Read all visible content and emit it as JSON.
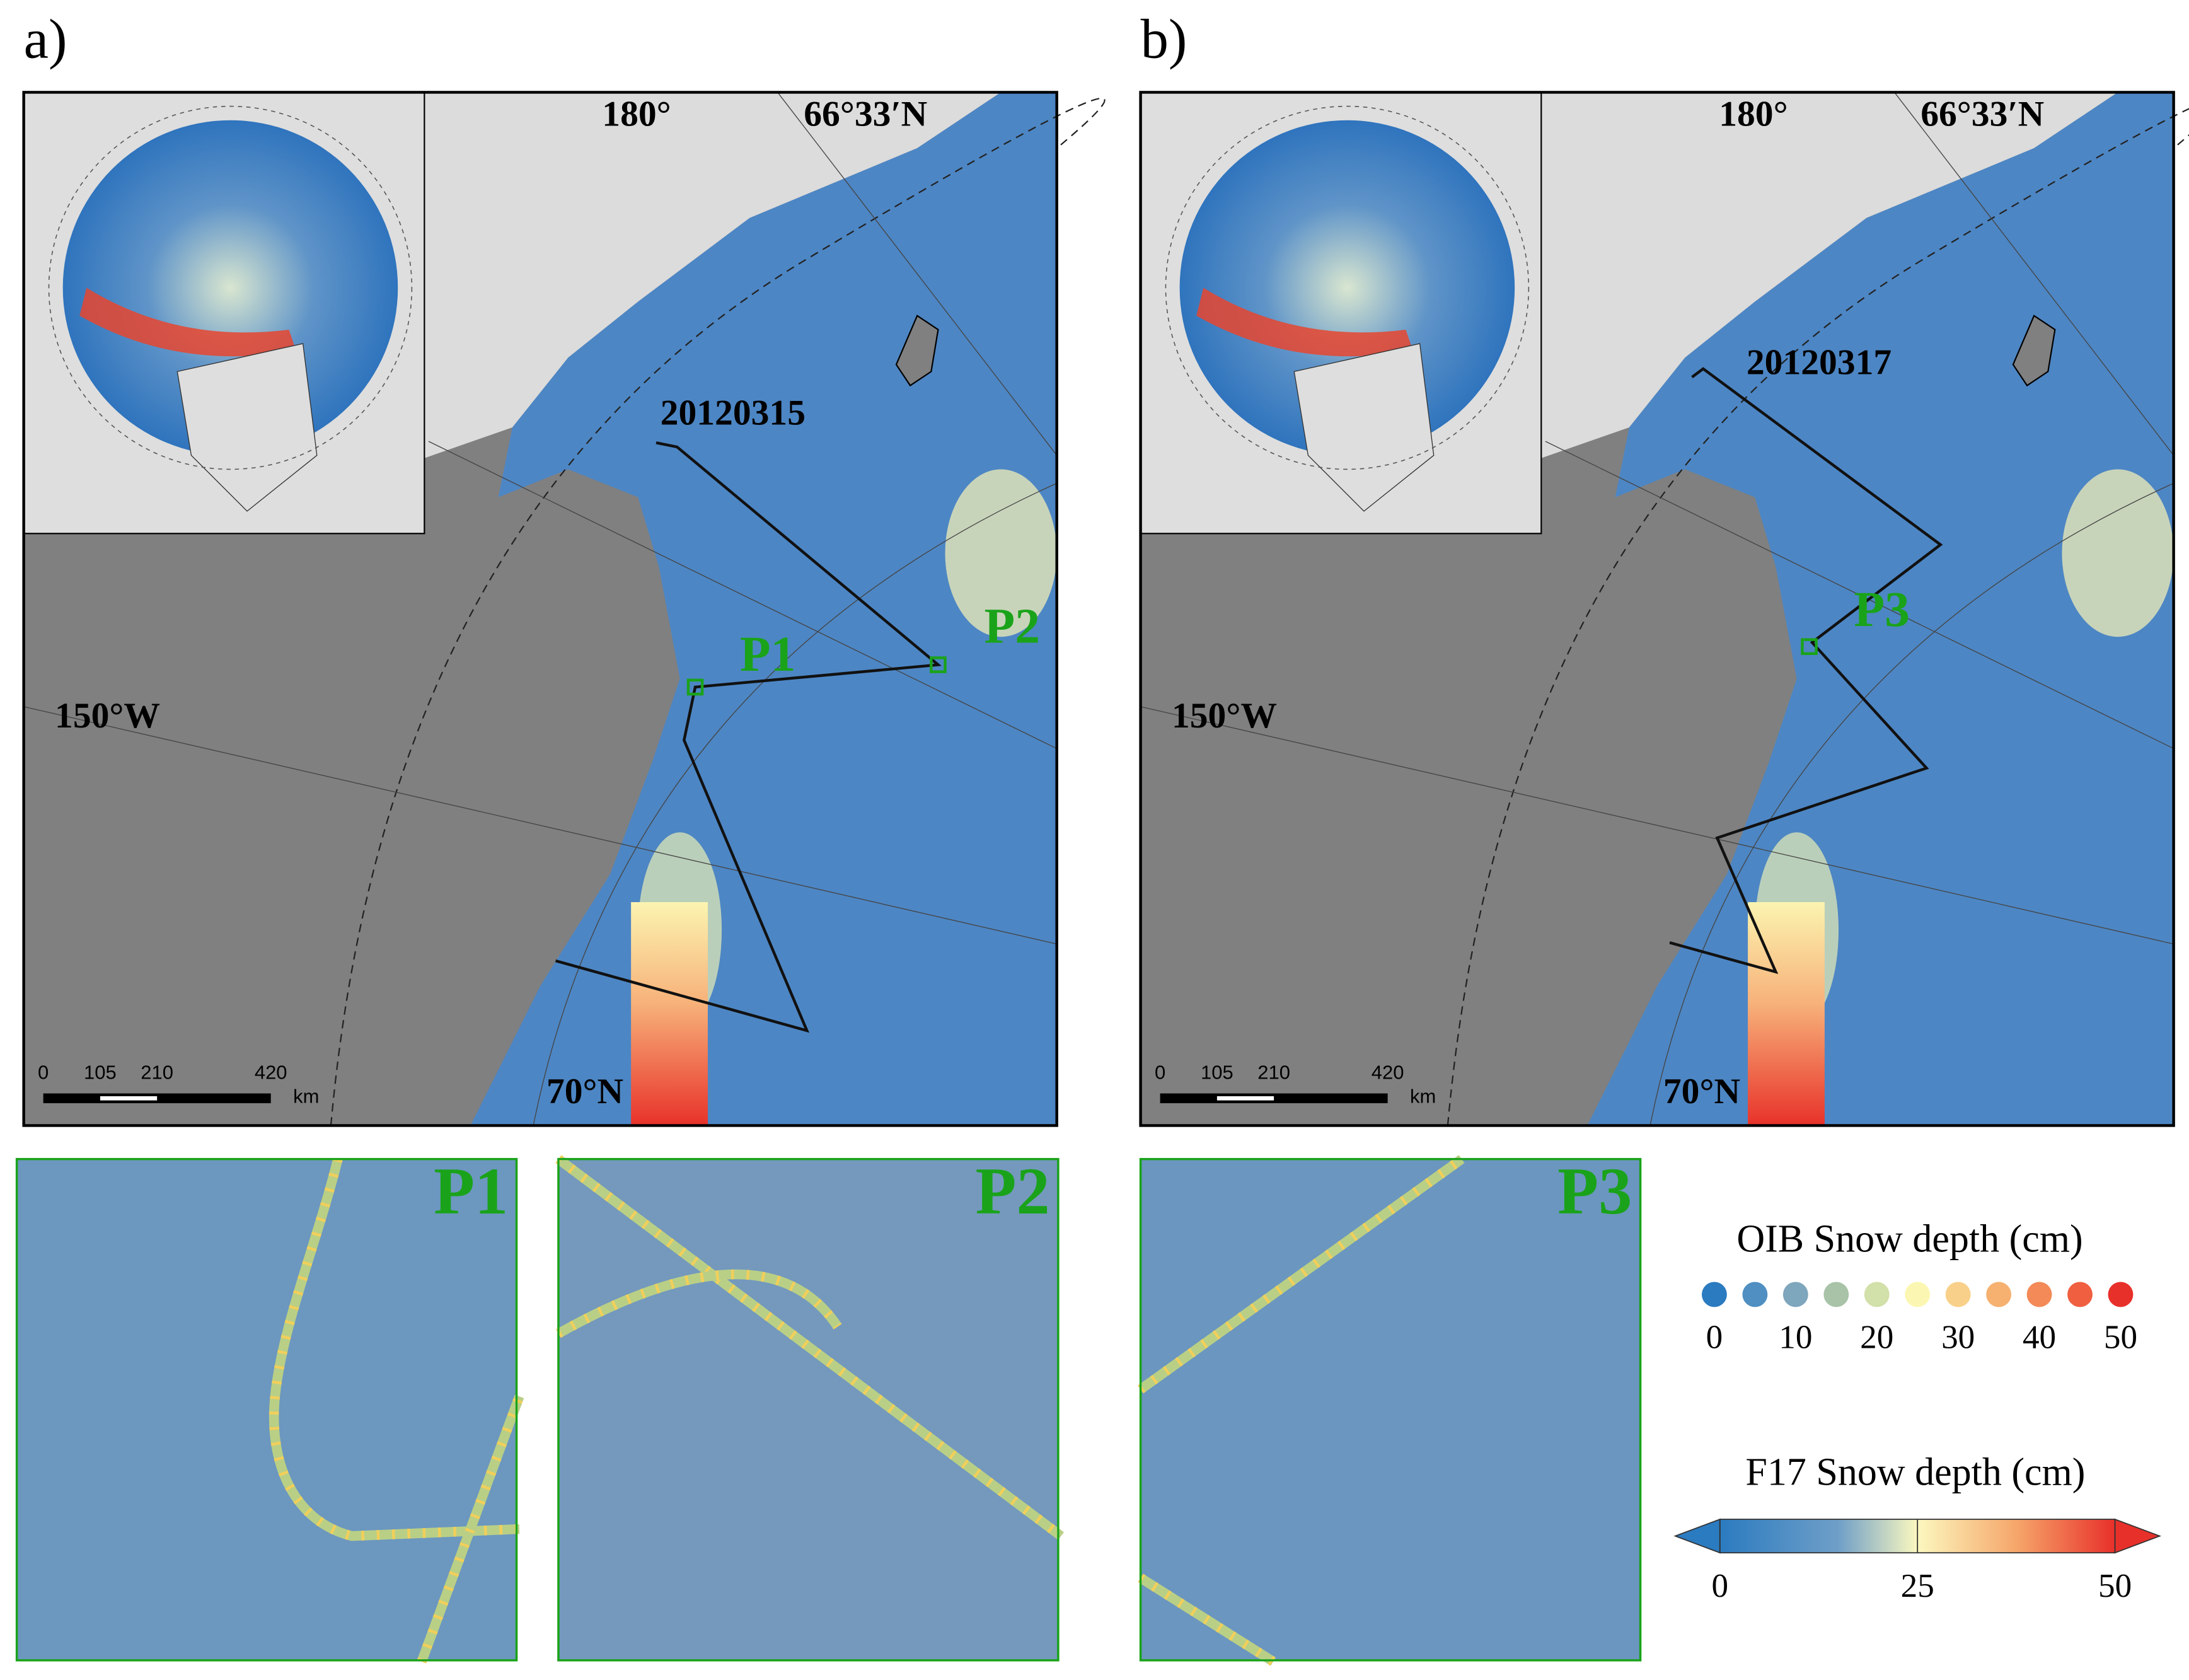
{
  "panels": [
    {
      "label": "a)",
      "lon_label": "180°",
      "lat_label": "66°33′N",
      "west_label": "150°W",
      "north_label": "70°N",
      "date": "20120315",
      "points": [
        "P1",
        "P2"
      ]
    },
    {
      "label": "b)",
      "lon_label": "180°",
      "lat_label": "66°33′N",
      "west_label": "150°W",
      "north_label": "70°N",
      "date": "20120317",
      "points": [
        "P3"
      ]
    }
  ],
  "scale_bar": {
    "ticks": [
      0,
      105,
      210,
      420
    ],
    "unit": "km"
  },
  "zooms": [
    "P1",
    "P2",
    "P3"
  ],
  "legend_oib": {
    "title": "OIB Snow depth (cm)",
    "ticks": [
      0,
      10,
      20,
      30,
      40,
      50
    ],
    "colors": [
      "#2b7bc0",
      "#4f8fc2",
      "#7ea6bd",
      "#a8c3a8",
      "#d2e0a9",
      "#fbf7b2",
      "#f8d089",
      "#f6b070",
      "#f38a58",
      "#ef5f40",
      "#e8302a"
    ]
  },
  "legend_f17": {
    "title": "F17 Snow depth (cm)",
    "ticks": [
      0,
      25,
      50
    ]
  }
}
